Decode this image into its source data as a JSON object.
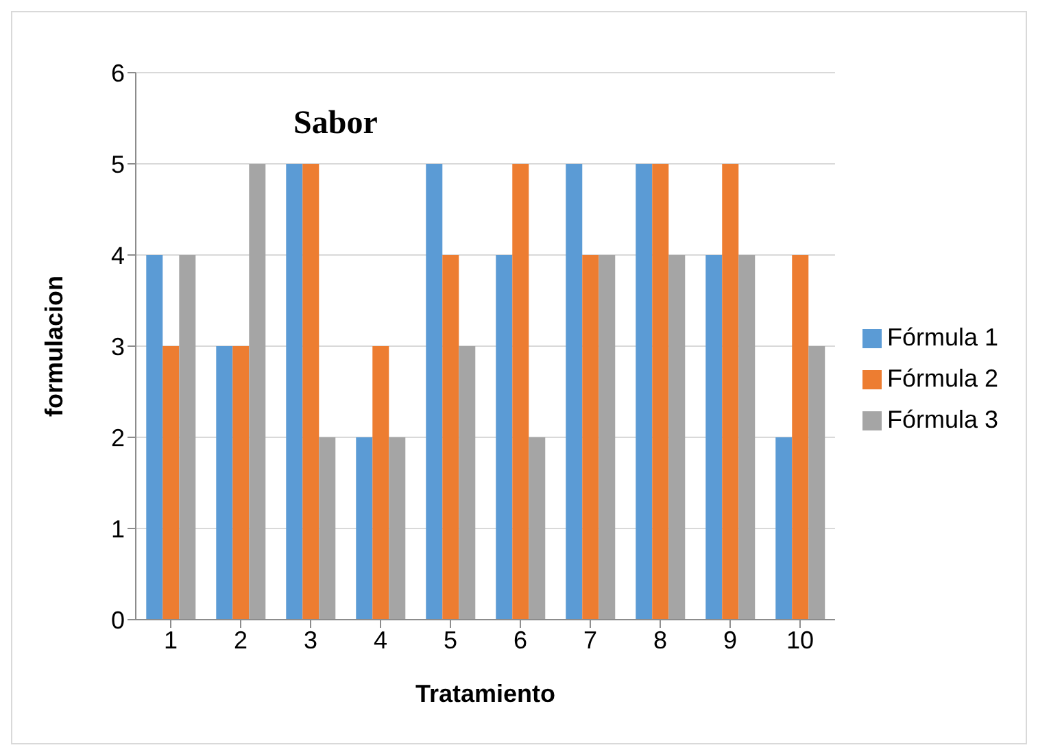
{
  "chart_data": {
    "type": "bar",
    "title": "Sabor",
    "xlabel": "Tratamiento",
    "ylabel": "formulacion",
    "categories": [
      "1",
      "2",
      "3",
      "4",
      "5",
      "6",
      "7",
      "8",
      "9",
      "10"
    ],
    "series": [
      {
        "name": "Fórmula 1",
        "color": "#5b9bd5",
        "values": [
          4,
          3,
          5,
          2,
          5,
          4,
          5,
          5,
          4,
          2
        ]
      },
      {
        "name": "Fórmula 2",
        "color": "#ed7d31",
        "values": [
          3,
          3,
          5,
          3,
          4,
          5,
          4,
          5,
          5,
          4
        ]
      },
      {
        "name": "Fórmula 3",
        "color": "#a5a5a5",
        "values": [
          4,
          5,
          2,
          2,
          3,
          2,
          4,
          4,
          4,
          3
        ]
      }
    ],
    "ylim": [
      0,
      6
    ],
    "yticks": [
      0,
      1,
      2,
      3,
      4,
      5,
      6
    ],
    "grid": "y",
    "legend": "right"
  }
}
